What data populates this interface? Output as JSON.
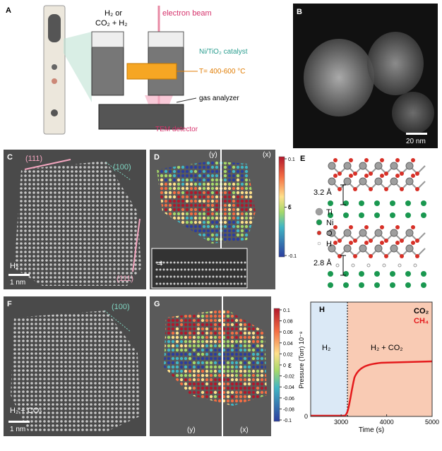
{
  "A": {
    "label": "A",
    "gas_line1": "H₂ or",
    "gas_line2": "CO₂ + H₂",
    "beam": "electron beam",
    "catalyst": "Ni/TiO₂ catalyst",
    "temperature": "T= 400-600 °C",
    "analyzer": "gas analyzer",
    "detector": "TEM detector"
  },
  "B": {
    "label": "B",
    "scale_bar": "20 nm"
  },
  "C": {
    "label": "C",
    "facets": [
      "(111)",
      "(100)",
      "(111)"
    ],
    "gas": "H₂",
    "scale_bar": "1 nm"
  },
  "D": {
    "label": "D",
    "views": [
      "(y)",
      "(x)"
    ],
    "colorbar": {
      "label": "ε",
      "lim": [
        -0.1,
        0.1
      ],
      "ticks": [
        0.1,
        0,
        -0.1
      ]
    }
  },
  "E": {
    "label": "E",
    "spacings": [
      "3.2 Å",
      "2.8 Å"
    ],
    "legend": [
      "Ti",
      "Ni",
      "O",
      "H"
    ]
  },
  "F": {
    "label": "F",
    "facet": "(100)",
    "gas": "H₂ + CO₂",
    "scale_bar": "1 nm"
  },
  "G": {
    "label": "G",
    "views": [
      "(y)",
      "(x)"
    ],
    "colorbar": {
      "label": "ε",
      "lim": [
        -0.1,
        0.1
      ],
      "ticks": [
        0.1,
        0.08,
        0.06,
        0.04,
        0.02,
        0,
        -0.02,
        -0.04,
        -0.06,
        -0.08,
        -0.1
      ]
    }
  },
  "H": {
    "label": "H",
    "legend": [
      "CO₂",
      "CH₄"
    ],
    "regions": [
      "H₂",
      "H₂ + CO₂"
    ],
    "y_label": "Pressure (Torr) 10⁻⁸",
    "x_label": "Time (s)",
    "xlim": [
      2330,
      5000
    ],
    "xticks": [
      3000,
      4000,
      5000
    ],
    "yticks": [
      0
    ]
  }
}
